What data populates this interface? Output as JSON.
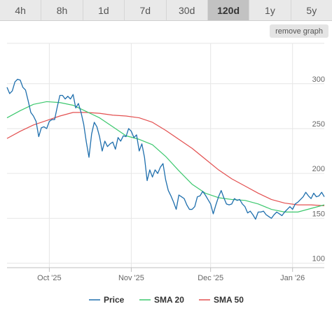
{
  "tabs": [
    {
      "label": "4h",
      "active": false
    },
    {
      "label": "8h",
      "active": false
    },
    {
      "label": "1d",
      "active": false
    },
    {
      "label": "7d",
      "active": false
    },
    {
      "label": "30d",
      "active": false
    },
    {
      "label": "120d",
      "active": true
    },
    {
      "label": "1y",
      "active": false
    },
    {
      "label": "5y",
      "active": false
    }
  ],
  "remove_graph_label": "remove graph",
  "chart_data": {
    "type": "line",
    "x_start": "2025-09-15",
    "x_end": "2026-01-13",
    "xticks": [
      {
        "label": "Oct '25",
        "date": "2025-10-01"
      },
      {
        "label": "Nov '25",
        "date": "2025-11-01"
      },
      {
        "label": "Dec '25",
        "date": "2025-12-01"
      },
      {
        "label": "Jan '26",
        "date": "2026-01-01"
      }
    ],
    "ylim": [
      95,
      345
    ],
    "yticks": [
      100,
      150,
      200,
      250,
      300
    ],
    "grid": true,
    "legend_position": "bottom",
    "series": [
      {
        "name": "Price",
        "color": "#1f6fad",
        "points": [
          [
            "2025-09-15",
            296
          ],
          [
            "2025-09-16",
            289
          ],
          [
            "2025-09-17",
            292
          ],
          [
            "2025-09-18",
            302
          ],
          [
            "2025-09-19",
            305
          ],
          [
            "2025-09-20",
            304
          ],
          [
            "2025-09-21",
            296
          ],
          [
            "2025-09-22",
            293
          ],
          [
            "2025-09-23",
            281
          ],
          [
            "2025-09-24",
            268
          ],
          [
            "2025-09-25",
            264
          ],
          [
            "2025-09-26",
            258
          ],
          [
            "2025-09-27",
            241
          ],
          [
            "2025-09-28",
            251
          ],
          [
            "2025-09-29",
            252
          ],
          [
            "2025-09-30",
            250
          ],
          [
            "2025-10-01",
            258
          ],
          [
            "2025-10-02",
            260
          ],
          [
            "2025-10-03",
            260
          ],
          [
            "2025-10-04",
            274
          ],
          [
            "2025-10-05",
            287
          ],
          [
            "2025-10-06",
            287
          ],
          [
            "2025-10-07",
            283
          ],
          [
            "2025-10-08",
            286
          ],
          [
            "2025-10-09",
            283
          ],
          [
            "2025-10-10",
            288
          ],
          [
            "2025-10-11",
            273
          ],
          [
            "2025-10-12",
            278
          ],
          [
            "2025-10-13",
            268
          ],
          [
            "2025-10-14",
            255
          ],
          [
            "2025-10-15",
            235
          ],
          [
            "2025-10-16",
            218
          ],
          [
            "2025-10-17",
            244
          ],
          [
            "2025-10-18",
            257
          ],
          [
            "2025-10-19",
            252
          ],
          [
            "2025-10-20",
            241
          ],
          [
            "2025-10-21",
            225
          ],
          [
            "2025-10-22",
            236
          ],
          [
            "2025-10-23",
            230
          ],
          [
            "2025-10-24",
            233
          ],
          [
            "2025-10-25",
            235
          ],
          [
            "2025-10-26",
            227
          ],
          [
            "2025-10-27",
            240
          ],
          [
            "2025-10-28",
            236
          ],
          [
            "2025-10-29",
            242
          ],
          [
            "2025-10-30",
            241
          ],
          [
            "2025-10-31",
            250
          ],
          [
            "2025-11-01",
            247
          ],
          [
            "2025-11-02",
            240
          ],
          [
            "2025-11-03",
            243
          ],
          [
            "2025-11-04",
            225
          ],
          [
            "2025-11-05",
            233
          ],
          [
            "2025-11-06",
            218
          ],
          [
            "2025-11-07",
            192
          ],
          [
            "2025-11-08",
            204
          ],
          [
            "2025-11-09",
            196
          ],
          [
            "2025-11-10",
            204
          ],
          [
            "2025-11-11",
            200
          ],
          [
            "2025-11-12",
            207
          ],
          [
            "2025-11-13",
            211
          ],
          [
            "2025-11-14",
            193
          ],
          [
            "2025-11-15",
            181
          ],
          [
            "2025-11-16",
            175
          ],
          [
            "2025-11-17",
            168
          ],
          [
            "2025-11-18",
            160
          ],
          [
            "2025-11-19",
            176
          ],
          [
            "2025-11-20",
            174
          ],
          [
            "2025-11-21",
            172
          ],
          [
            "2025-11-22",
            165
          ],
          [
            "2025-11-23",
            160
          ],
          [
            "2025-11-24",
            160
          ],
          [
            "2025-11-25",
            163
          ],
          [
            "2025-11-26",
            174
          ],
          [
            "2025-11-27",
            175
          ],
          [
            "2025-11-28",
            180
          ],
          [
            "2025-11-29",
            176
          ],
          [
            "2025-11-30",
            171
          ],
          [
            "2025-12-01",
            166
          ],
          [
            "2025-12-02",
            155
          ],
          [
            "2025-12-03",
            165
          ],
          [
            "2025-12-04",
            174
          ],
          [
            "2025-12-05",
            181
          ],
          [
            "2025-12-06",
            173
          ],
          [
            "2025-12-07",
            166
          ],
          [
            "2025-12-08",
            165
          ],
          [
            "2025-12-09",
            166
          ],
          [
            "2025-12-10",
            172
          ],
          [
            "2025-12-11",
            170
          ],
          [
            "2025-12-12",
            171
          ],
          [
            "2025-12-13",
            166
          ],
          [
            "2025-12-14",
            163
          ],
          [
            "2025-12-15",
            156
          ],
          [
            "2025-12-16",
            158
          ],
          [
            "2025-12-17",
            154
          ],
          [
            "2025-12-18",
            149
          ],
          [
            "2025-12-19",
            157
          ],
          [
            "2025-12-20",
            157
          ],
          [
            "2025-12-21",
            158
          ],
          [
            "2025-12-22",
            154
          ],
          [
            "2025-12-23",
            152
          ],
          [
            "2025-12-24",
            150
          ],
          [
            "2025-12-25",
            154
          ],
          [
            "2025-12-26",
            157
          ],
          [
            "2025-12-27",
            155
          ],
          [
            "2025-12-28",
            153
          ],
          [
            "2025-12-29",
            157
          ],
          [
            "2025-12-30",
            160
          ],
          [
            "2025-12-31",
            163
          ],
          [
            "2026-01-01",
            160
          ],
          [
            "2026-01-02",
            166
          ],
          [
            "2026-01-03",
            168
          ],
          [
            "2026-01-04",
            171
          ],
          [
            "2026-01-05",
            174
          ],
          [
            "2026-01-06",
            179
          ],
          [
            "2026-01-07",
            175
          ],
          [
            "2026-01-08",
            172
          ],
          [
            "2026-01-09",
            178
          ],
          [
            "2026-01-10",
            174
          ],
          [
            "2026-01-11",
            175
          ],
          [
            "2026-01-12",
            179
          ],
          [
            "2026-01-13",
            174
          ]
        ]
      },
      {
        "name": "SMA 20",
        "color": "#3cc86e",
        "points": [
          [
            "2025-09-15",
            262
          ],
          [
            "2025-09-20",
            270
          ],
          [
            "2025-09-25",
            277
          ],
          [
            "2025-09-30",
            280
          ],
          [
            "2025-10-05",
            279
          ],
          [
            "2025-10-10",
            276
          ],
          [
            "2025-10-15",
            269
          ],
          [
            "2025-10-20",
            262
          ],
          [
            "2025-10-25",
            252
          ],
          [
            "2025-10-30",
            242
          ],
          [
            "2025-11-04",
            238
          ],
          [
            "2025-11-09",
            232
          ],
          [
            "2025-11-14",
            219
          ],
          [
            "2025-11-19",
            203
          ],
          [
            "2025-11-24",
            188
          ],
          [
            "2025-11-29",
            178
          ],
          [
            "2025-12-04",
            173
          ],
          [
            "2025-12-09",
            171
          ],
          [
            "2025-12-14",
            170
          ],
          [
            "2025-12-19",
            166
          ],
          [
            "2025-12-24",
            160
          ],
          [
            "2025-12-29",
            157
          ],
          [
            "2026-01-03",
            157
          ],
          [
            "2026-01-08",
            161
          ],
          [
            "2026-01-13",
            165
          ]
        ]
      },
      {
        "name": "SMA 50",
        "color": "#e35050",
        "points": [
          [
            "2025-09-15",
            239
          ],
          [
            "2025-09-20",
            247
          ],
          [
            "2025-09-25",
            254
          ],
          [
            "2025-09-30",
            259
          ],
          [
            "2025-10-05",
            264
          ],
          [
            "2025-10-10",
            268
          ],
          [
            "2025-10-15",
            268
          ],
          [
            "2025-10-20",
            267
          ],
          [
            "2025-10-25",
            265
          ],
          [
            "2025-10-30",
            264
          ],
          [
            "2025-11-04",
            262
          ],
          [
            "2025-11-09",
            257
          ],
          [
            "2025-11-14",
            248
          ],
          [
            "2025-11-19",
            238
          ],
          [
            "2025-11-24",
            228
          ],
          [
            "2025-11-29",
            216
          ],
          [
            "2025-12-04",
            204
          ],
          [
            "2025-12-09",
            194
          ],
          [
            "2025-12-14",
            186
          ],
          [
            "2025-12-19",
            178
          ],
          [
            "2025-12-24",
            171
          ],
          [
            "2025-12-29",
            167
          ],
          [
            "2026-01-03",
            165
          ],
          [
            "2026-01-08",
            165
          ],
          [
            "2026-01-13",
            164
          ]
        ]
      }
    ]
  }
}
